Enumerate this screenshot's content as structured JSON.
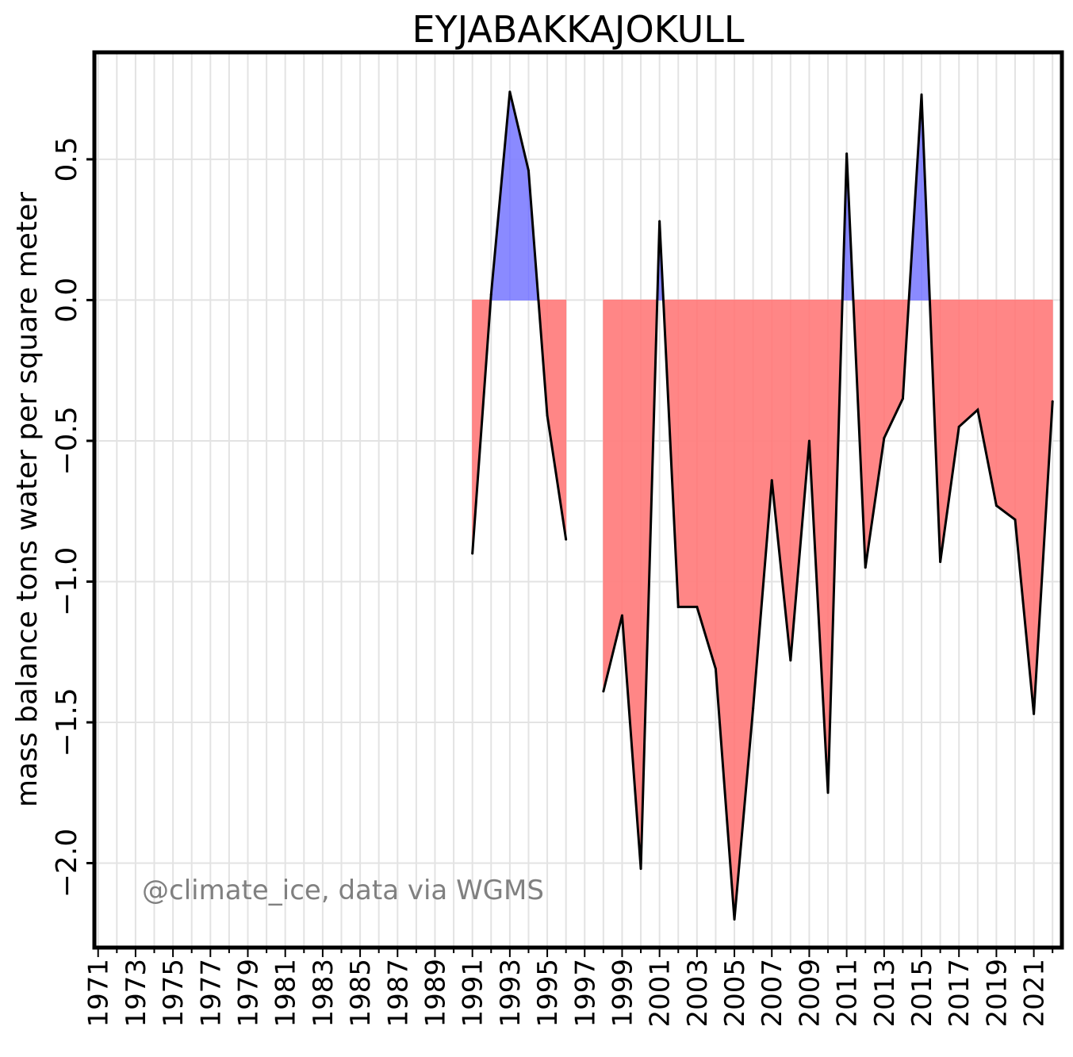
{
  "chart_data": {
    "type": "area",
    "title": "EYJABAKKAJOKULL",
    "xlabel": "",
    "ylabel": "mass balance tons water per square meter",
    "annotation": "@climate_ice, data via WGMS",
    "xlim": [
      1970.8,
      2022.5
    ],
    "ylim": [
      -2.3,
      0.88
    ],
    "grid": true,
    "x_ticks": [
      1971,
      1973,
      1975,
      1977,
      1979,
      1981,
      1983,
      1985,
      1987,
      1989,
      1991,
      1993,
      1995,
      1997,
      1999,
      2001,
      2003,
      2005,
      2007,
      2009,
      2011,
      2013,
      2015,
      2017,
      2019,
      2021
    ],
    "x_tick_labels": [
      "1971",
      "1973",
      "1975",
      "1977",
      "1979",
      "1981",
      "1983",
      "1985",
      "1987",
      "1989",
      "1991",
      "1993",
      "1995",
      "1997",
      "1999",
      "2001",
      "2003",
      "2005",
      "2007",
      "2009",
      "2011",
      "2013",
      "2015",
      "2017",
      "2019",
      "2021"
    ],
    "y_ticks": [
      -2.0,
      -1.5,
      -1.0,
      -0.5,
      0.0,
      0.5
    ],
    "y_tick_labels": [
      "−2.0",
      "−1.5",
      "−1.0",
      "−0.5",
      "0.0",
      "0.5"
    ],
    "positive_color": "#8080ff",
    "negative_color": "#ff8080",
    "line_color": "#000000",
    "series": [
      {
        "x": [
          1991,
          1992,
          1993,
          1994,
          1995,
          1996
        ],
        "values": [
          -0.9,
          0.02,
          0.74,
          0.46,
          -0.41,
          -0.85
        ]
      },
      {
        "x": [
          1998,
          1999,
          2000,
          2001,
          2002,
          2003,
          2004,
          2005,
          2006,
          2007,
          2008,
          2009,
          2010,
          2011,
          2012,
          2013,
          2014,
          2015,
          2016,
          2017,
          2018,
          2019,
          2020,
          2021,
          2022
        ],
        "values": [
          -1.39,
          -1.12,
          -2.02,
          0.28,
          -1.09,
          -1.09,
          -1.31,
          -2.2,
          -1.45,
          -0.64,
          -1.28,
          -0.5,
          -1.75,
          0.52,
          -0.95,
          -0.49,
          -0.35,
          0.73,
          -0.93,
          -0.45,
          -0.39,
          -0.73,
          -0.78,
          -1.47,
          -0.36
        ]
      }
    ]
  }
}
